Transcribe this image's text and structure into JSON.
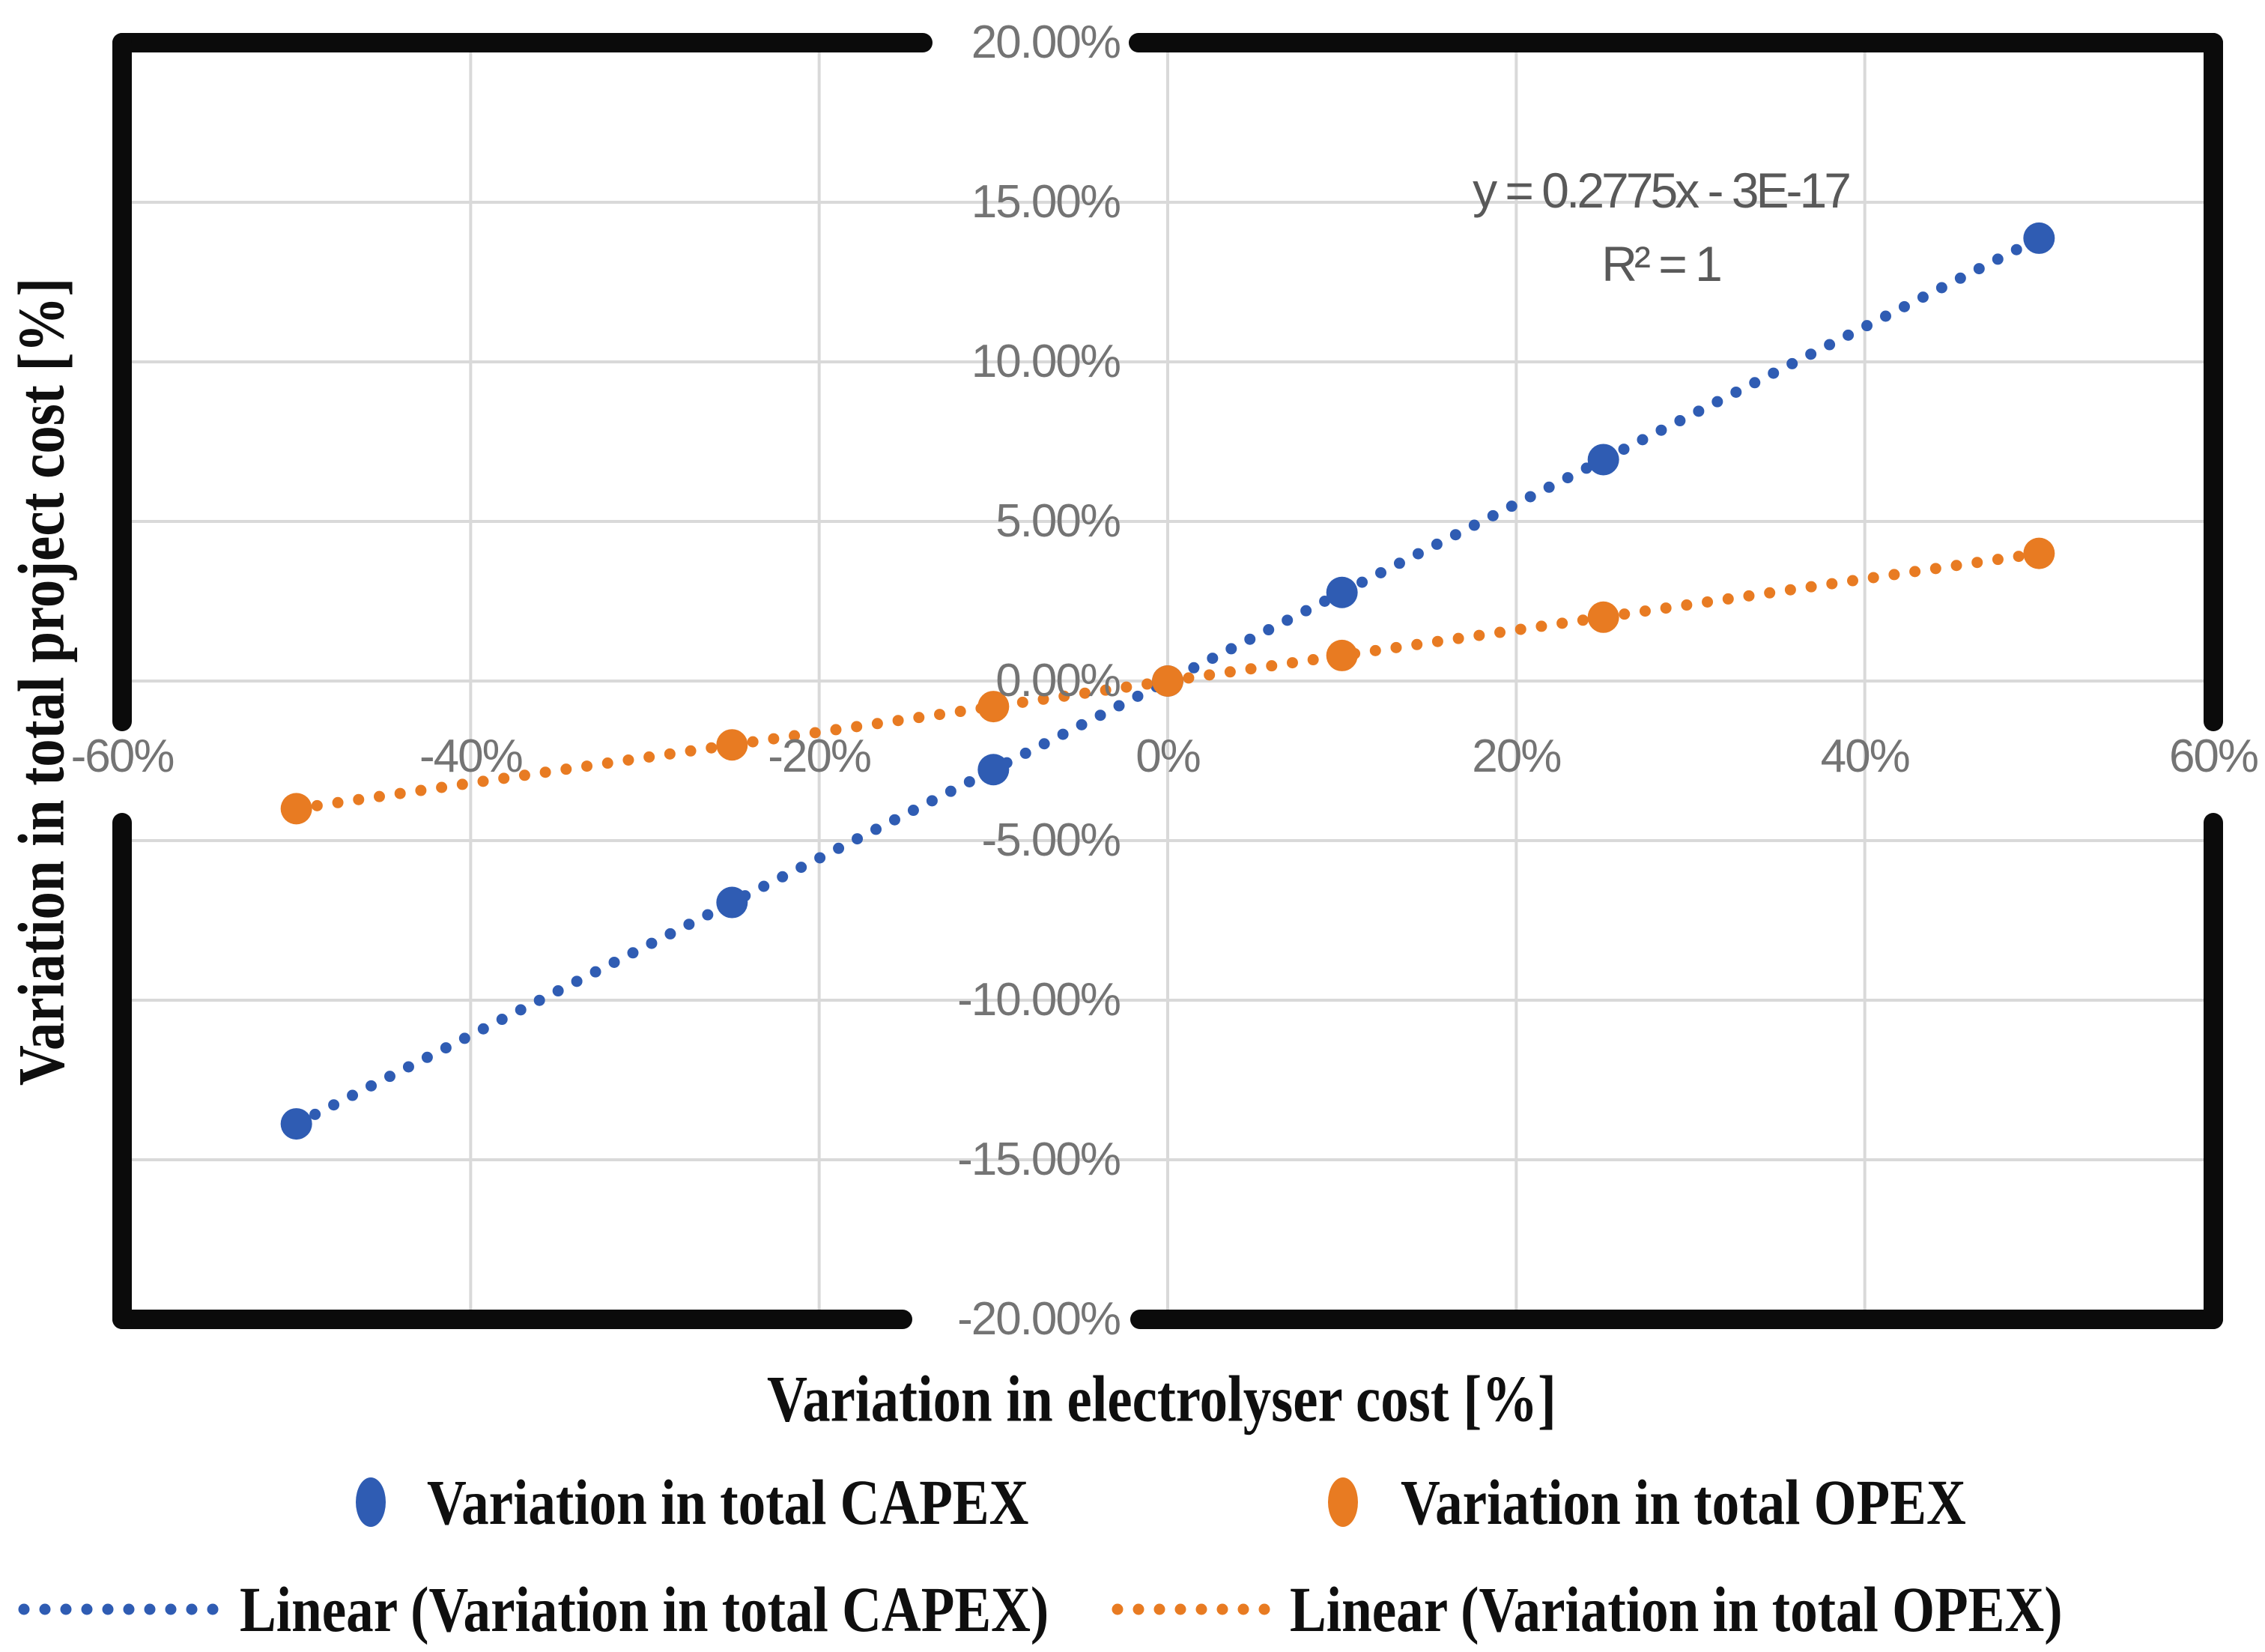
{
  "chart_data": {
    "type": "scatter",
    "title": "",
    "xlabel": "Variation in electrolyser cost [%]",
    "ylabel": "Variation in total project cost [%]",
    "xlim": [
      -60,
      60
    ],
    "ylim": [
      -20,
      20
    ],
    "grid": true,
    "grid_color": "#d9d9d9",
    "frame_color": "#0b0b0b",
    "tick_text_color": "#747474",
    "x_ticks": [
      {
        "value": -60,
        "label": "-60%"
      },
      {
        "value": -40,
        "label": "-40%"
      },
      {
        "value": -20,
        "label": "-20%"
      },
      {
        "value": 0,
        "label": "0%"
      },
      {
        "value": 20,
        "label": "20%"
      },
      {
        "value": 40,
        "label": "40%"
      },
      {
        "value": 60,
        "label": "60%"
      }
    ],
    "y_ticks": [
      {
        "value": 20,
        "label": "20.00%"
      },
      {
        "value": 15,
        "label": "15.00%"
      },
      {
        "value": 10,
        "label": "10.00%"
      },
      {
        "value": 5,
        "label": "5.00%"
      },
      {
        "value": 0,
        "label": "0.00%"
      },
      {
        "value": -5,
        "label": "-5.00%"
      },
      {
        "value": -10,
        "label": "-10.00%"
      },
      {
        "value": -15,
        "label": "-15.00%"
      },
      {
        "value": -20,
        "label": "-20.00%"
      }
    ],
    "series": [
      {
        "name": "Variation in total CAPEX",
        "color": "#2f5cb3",
        "marker": "circle",
        "points": [
          {
            "x": -50,
            "y": -13.875
          },
          {
            "x": -25,
            "y": -6.9375
          },
          {
            "x": -10,
            "y": -2.775
          },
          {
            "x": 0,
            "y": 0
          },
          {
            "x": 10,
            "y": 2.775
          },
          {
            "x": 25,
            "y": 6.9375
          },
          {
            "x": 50,
            "y": 13.875
          }
        ]
      },
      {
        "name": "Variation in total OPEX",
        "color": "#e87b22",
        "marker": "circle",
        "points": [
          {
            "x": -50,
            "y": -4
          },
          {
            "x": -25,
            "y": -2
          },
          {
            "x": -10,
            "y": -0.8
          },
          {
            "x": 0,
            "y": 0
          },
          {
            "x": 10,
            "y": 0.8
          },
          {
            "x": 25,
            "y": 2
          },
          {
            "x": 50,
            "y": 4
          }
        ]
      }
    ],
    "trendlines": [
      {
        "name": "Linear (Variation in total CAPEX)",
        "color": "#2f5cb3",
        "slope": 0.2775,
        "x": [
          -50,
          50
        ],
        "y": [
          -13.875,
          13.875
        ]
      },
      {
        "name": "Linear (Variation in total OPEX)",
        "color": "#e87b22",
        "slope": 0.08,
        "x": [
          -50,
          50
        ],
        "y": [
          -4,
          4
        ]
      }
    ],
    "annotation": {
      "line1": "y = 0.2775x - 3E-17",
      "line2": "R² = 1",
      "color": "#595959"
    },
    "legend_position": "bottom"
  },
  "legend": {
    "row1": [
      {
        "label": "Variation in total CAPEX",
        "swatch": "dot-marker",
        "color": "#2f5cb3"
      },
      {
        "label": "Variation in total OPEX",
        "swatch": "dot-marker",
        "color": "#e87b22"
      }
    ],
    "row2": [
      {
        "label": "Linear (Variation in total CAPEX)",
        "swatch": "dotted-line",
        "color": "#2f5cb3"
      },
      {
        "label": "Linear (Variation in total OPEX)",
        "swatch": "dotted-line",
        "color": "#e87b22"
      }
    ]
  }
}
